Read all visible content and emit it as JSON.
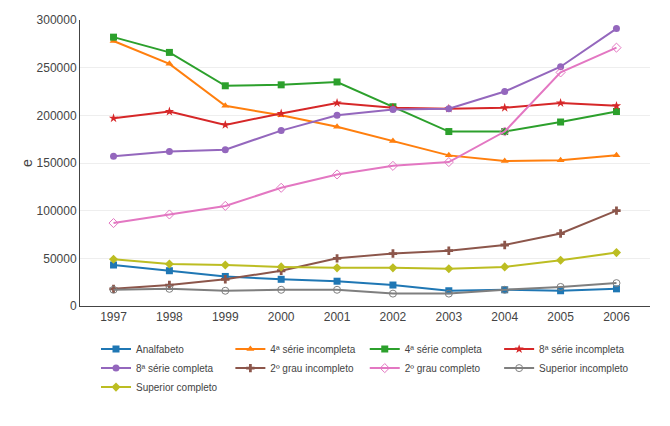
{
  "chart_data": {
    "type": "line",
    "x": [
      1997,
      1998,
      1999,
      2000,
      2001,
      2002,
      2003,
      2004,
      2005,
      2006
    ],
    "series": [
      {
        "name": "Analfabeto",
        "marker": "square",
        "values": [
          43000,
          37000,
          31000,
          28000,
          26000,
          22000,
          16000,
          17000,
          16000,
          18000
        ]
      },
      {
        "name": "4ª série incompleta",
        "marker": "triangle-up",
        "values": [
          278000,
          254000,
          210000,
          200000,
          188000,
          173000,
          158000,
          152000,
          153000,
          158000
        ]
      },
      {
        "name": "4ª série completa",
        "marker": "square",
        "values": [
          282000,
          266000,
          231000,
          232000,
          235000,
          209000,
          183000,
          183000,
          193000,
          204000
        ]
      },
      {
        "name": "8ª série incompleta",
        "marker": "star",
        "values": [
          197000,
          204000,
          190000,
          202000,
          213000,
          208000,
          207000,
          208000,
          213000,
          210000
        ]
      },
      {
        "name": "8ª série completa",
        "marker": "circle",
        "values": [
          157000,
          162000,
          164000,
          184000,
          200000,
          206000,
          207000,
          225000,
          251000,
          291000
        ]
      },
      {
        "name": "2º grau incompleto",
        "marker": "cross",
        "values": [
          18000,
          22000,
          28000,
          37000,
          50000,
          55000,
          58000,
          64000,
          76000,
          100000
        ]
      },
      {
        "name": "2º grau completo",
        "marker": "diamond-open",
        "values": [
          87000,
          96000,
          105000,
          124000,
          138000,
          147000,
          151000,
          183000,
          245000,
          271000
        ]
      },
      {
        "name": "Superior incompleto",
        "marker": "circle-open",
        "values": [
          17000,
          18000,
          16000,
          17000,
          17000,
          13000,
          13000,
          17000,
          20000,
          24000
        ]
      },
      {
        "name": "Superior completo",
        "marker": "diamond",
        "values": [
          49000,
          44000,
          43000,
          41000,
          40000,
          40000,
          39000,
          41000,
          48000,
          56000
        ]
      }
    ],
    "y_label": "e",
    "xlim": [
      1996.4,
      2006.6
    ],
    "xticks": [
      1997,
      1998,
      1999,
      2000,
      2001,
      2002,
      2003,
      2004,
      2005,
      2006
    ],
    "ylim": [
      0,
      300000
    ],
    "yticks": [
      0,
      50000,
      100000,
      150000,
      200000,
      250000,
      300000
    ],
    "grid": true,
    "legend": "bottom"
  }
}
